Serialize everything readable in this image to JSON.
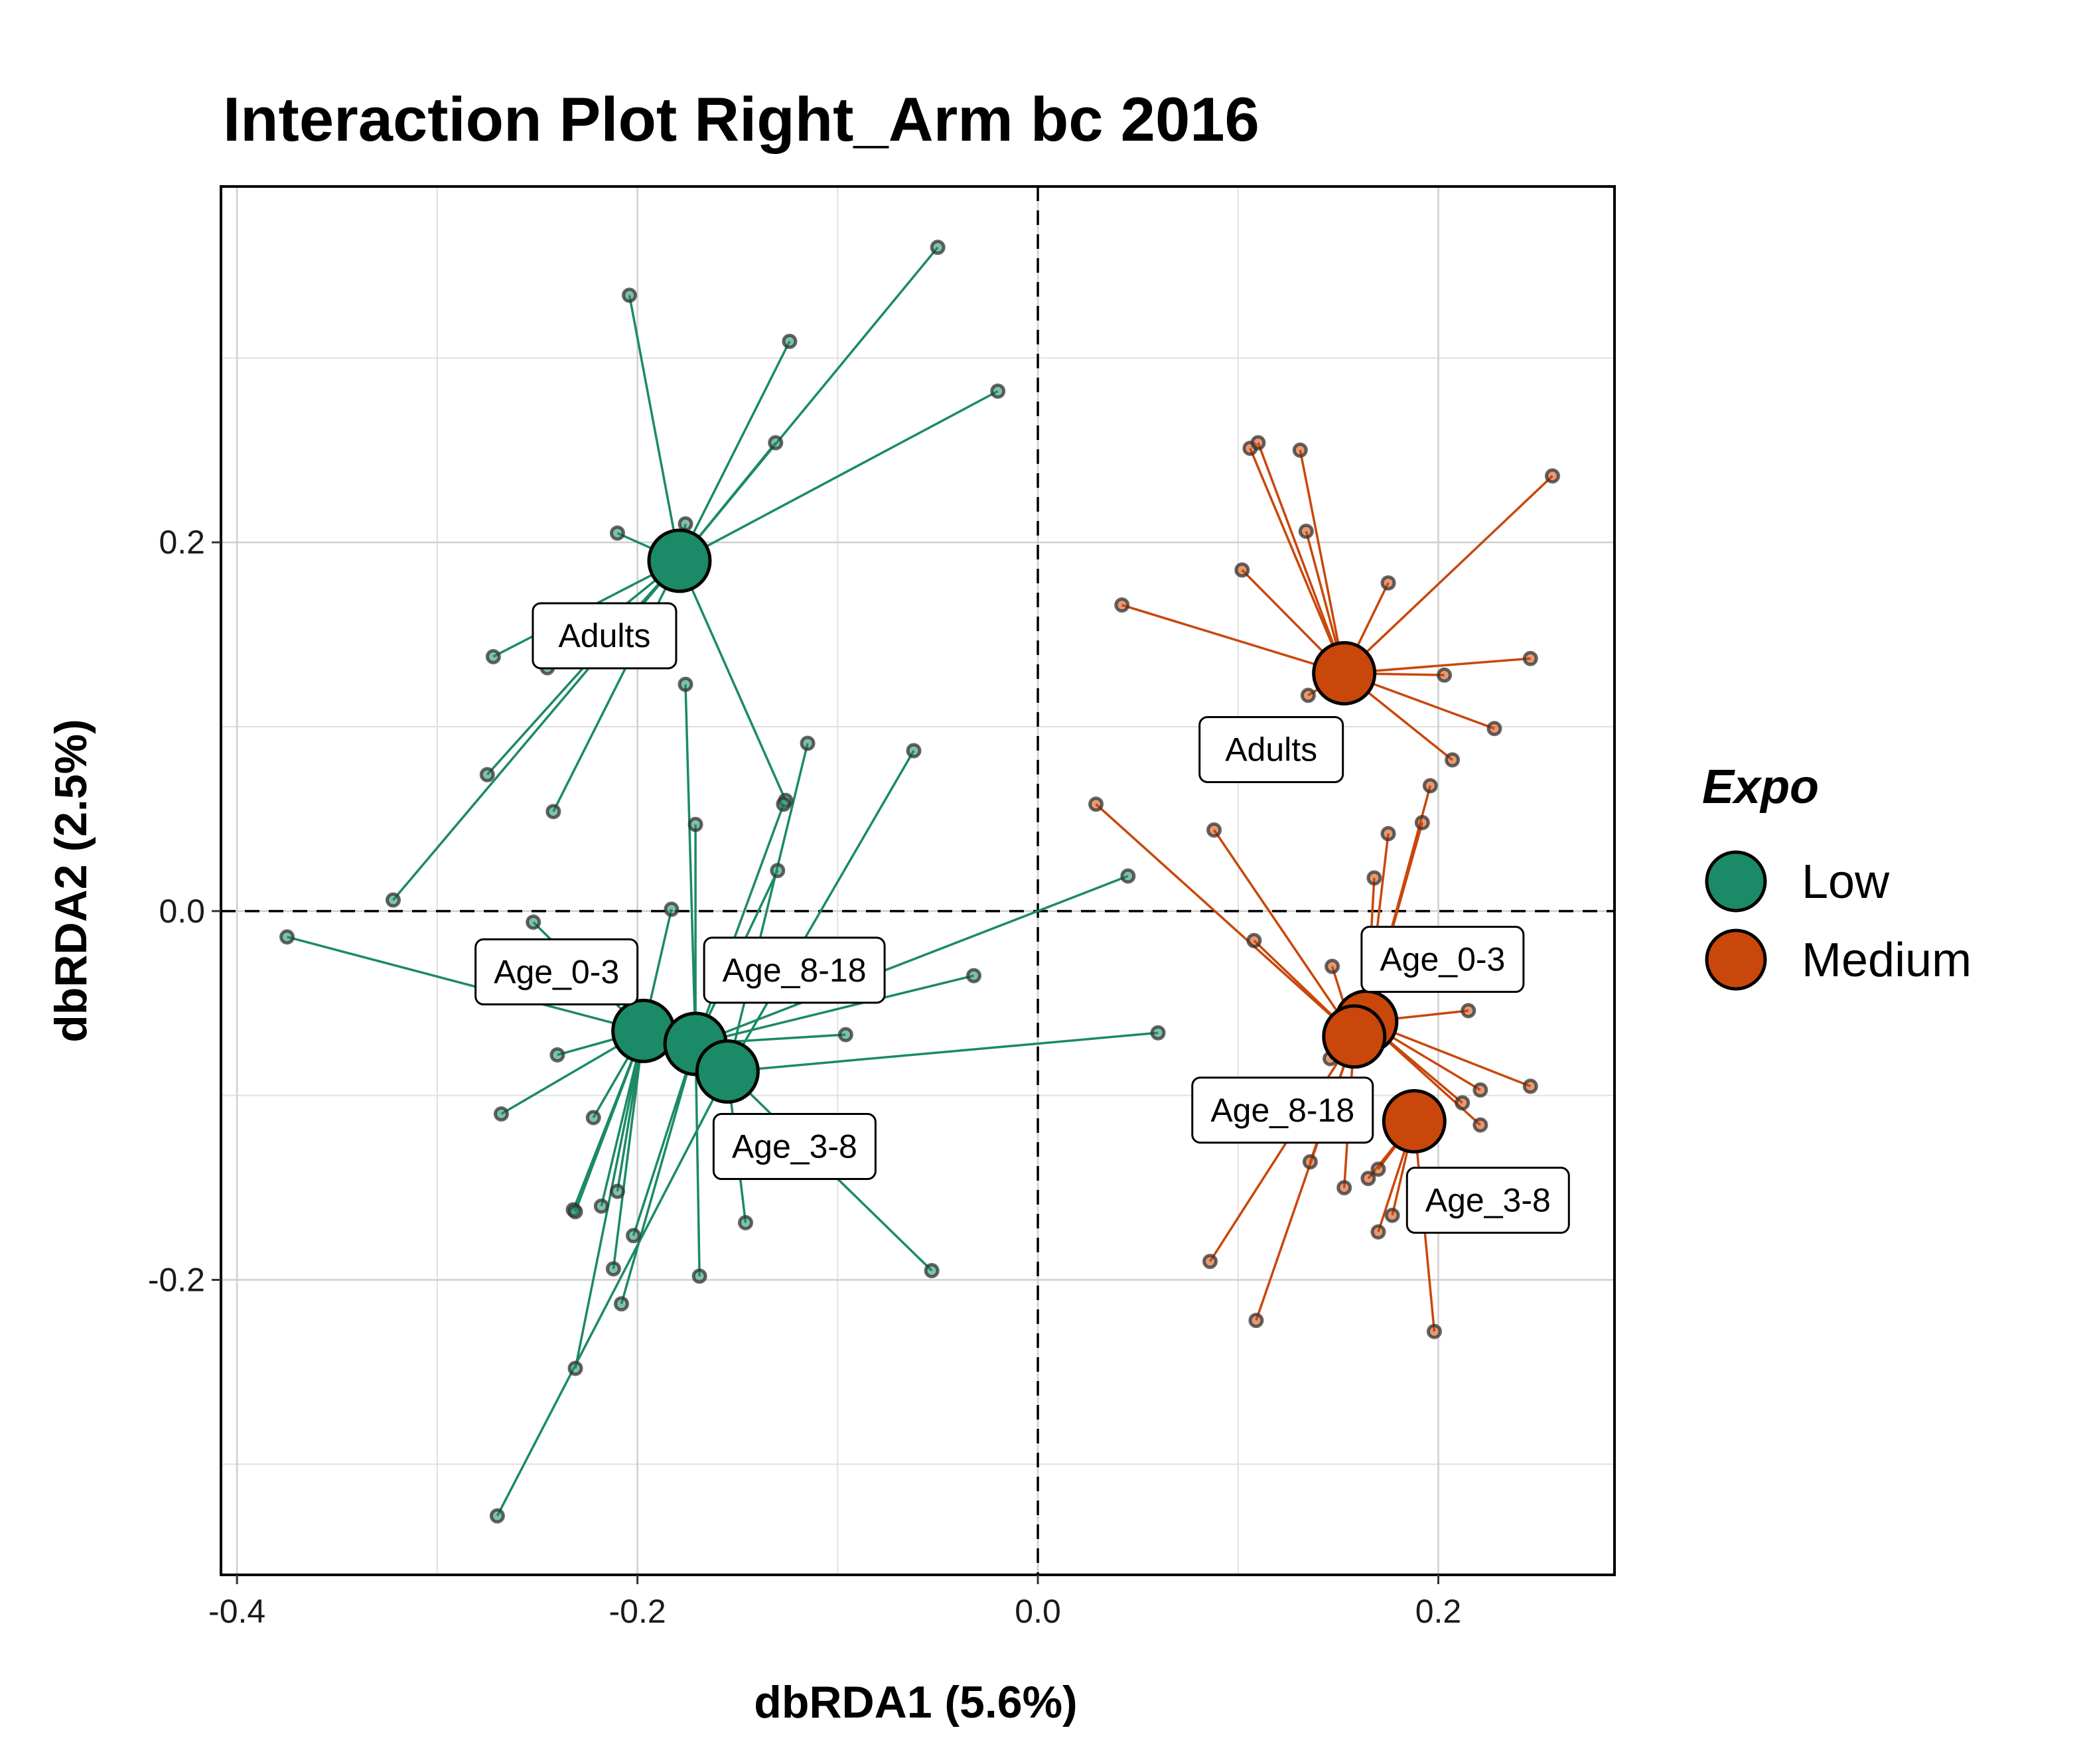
{
  "chart_data": {
    "type": "scatter",
    "title": "Interaction Plot Right_Arm bc 2016",
    "xlabel": "dbRDA1 (5.6%)",
    "ylabel": "dbRDA2 (2.5%)",
    "xlim": [
      -0.408,
      0.288
    ],
    "ylim": [
      -0.36,
      0.393
    ],
    "x_ticks": [
      "-0.4",
      "-0.2",
      "0.0",
      "0.2"
    ],
    "y_ticks": [
      "-0.2",
      "0.0",
      "0.2"
    ],
    "x_tick_values": [
      -0.4,
      -0.2,
      0.0,
      0.2
    ],
    "y_tick_values": [
      -0.2,
      0.0,
      0.2
    ],
    "grid": true,
    "reference_lines": {
      "x": 0.0,
      "y": 0.0,
      "style": "dashed"
    },
    "legend": {
      "title": "Expo",
      "position": "right",
      "entries": [
        "Low",
        "Medium"
      ]
    },
    "series": [
      {
        "name": "Low",
        "color": "#1b8a66",
        "centroids": [
          {
            "label": "Adults",
            "x": -0.179,
            "y": 0.19
          },
          {
            "label": "Age_0-3",
            "x": -0.197,
            "y": -0.065
          },
          {
            "label": "Age_8-18",
            "x": -0.171,
            "y": -0.072
          },
          {
            "label": "Age_3-8",
            "x": -0.155,
            "y": -0.087
          }
        ],
        "points": [
          {
            "group": "Adults",
            "x": -0.05,
            "y": 0.36
          },
          {
            "group": "Adults",
            "x": -0.204,
            "y": 0.334
          },
          {
            "group": "Adults",
            "x": -0.124,
            "y": 0.309
          },
          {
            "group": "Adults",
            "x": -0.02,
            "y": 0.282
          },
          {
            "group": "Adults",
            "x": -0.131,
            "y": 0.254
          },
          {
            "group": "Adults",
            "x": -0.176,
            "y": 0.21
          },
          {
            "group": "Adults",
            "x": -0.21,
            "y": 0.205
          },
          {
            "group": "Adults",
            "x": -0.272,
            "y": 0.138
          },
          {
            "group": "Adults",
            "x": -0.245,
            "y": 0.132
          },
          {
            "group": "Adults",
            "x": -0.275,
            "y": 0.074
          },
          {
            "group": "Adults",
            "x": -0.242,
            "y": 0.054
          },
          {
            "group": "Adults",
            "x": -0.322,
            "y": 0.006
          },
          {
            "group": "Adults",
            "x": -0.126,
            "y": 0.06
          },
          {
            "group": "Age_0-3",
            "x": -0.375,
            "y": -0.014
          },
          {
            "group": "Age_0-3",
            "x": -0.252,
            "y": -0.006
          },
          {
            "group": "Age_0-3",
            "x": -0.24,
            "y": -0.078
          },
          {
            "group": "Age_0-3",
            "x": -0.268,
            "y": -0.11
          },
          {
            "group": "Age_0-3",
            "x": -0.222,
            "y": -0.112
          },
          {
            "group": "Age_0-3",
            "x": -0.232,
            "y": -0.162
          },
          {
            "group": "Age_0-3",
            "x": -0.231,
            "y": -0.163
          },
          {
            "group": "Age_0-3",
            "x": -0.21,
            "y": -0.152
          },
          {
            "group": "Age_0-3",
            "x": -0.218,
            "y": -0.16
          },
          {
            "group": "Age_0-3",
            "x": -0.212,
            "y": -0.194
          },
          {
            "group": "Age_0-3",
            "x": -0.231,
            "y": -0.248
          },
          {
            "group": "Age_0-3",
            "x": -0.183,
            "y": 0.001
          },
          {
            "group": "Age_8-18",
            "x": -0.176,
            "y": 0.123
          },
          {
            "group": "Age_8-18",
            "x": -0.171,
            "y": 0.047
          },
          {
            "group": "Age_8-18",
            "x": -0.127,
            "y": 0.058
          },
          {
            "group": "Age_8-18",
            "x": -0.13,
            "y": 0.022
          },
          {
            "group": "Age_8-18",
            "x": 0.045,
            "y": 0.019
          },
          {
            "group": "Age_8-18",
            "x": -0.032,
            "y": -0.035
          },
          {
            "group": "Age_8-18",
            "x": -0.096,
            "y": -0.067
          },
          {
            "group": "Age_8-18",
            "x": -0.202,
            "y": -0.176
          },
          {
            "group": "Age_8-18",
            "x": -0.208,
            "y": -0.213
          },
          {
            "group": "Age_8-18",
            "x": -0.169,
            "y": -0.198
          },
          {
            "group": "Age_3-8",
            "x": -0.115,
            "y": 0.091
          },
          {
            "group": "Age_3-8",
            "x": -0.062,
            "y": 0.087
          },
          {
            "group": "Age_3-8",
            "x": 0.06,
            "y": -0.066
          },
          {
            "group": "Age_3-8",
            "x": -0.146,
            "y": -0.169
          },
          {
            "group": "Age_3-8",
            "x": -0.053,
            "y": -0.195
          },
          {
            "group": "Age_3-8",
            "x": -0.27,
            "y": -0.328
          }
        ]
      },
      {
        "name": "Medium",
        "color": "#c9470a",
        "centroids": [
          {
            "label": "Adults",
            "x": 0.153,
            "y": 0.129
          },
          {
            "label": "Age_0-3",
            "x": 0.164,
            "y": -0.06
          },
          {
            "label": "Age_8-18",
            "x": 0.158,
            "y": -0.068
          },
          {
            "label": "Age_3-8",
            "x": 0.188,
            "y": -0.114
          }
        ],
        "points": [
          {
            "group": "Adults",
            "x": 0.106,
            "y": 0.251
          },
          {
            "group": "Adults",
            "x": 0.11,
            "y": 0.254
          },
          {
            "group": "Adults",
            "x": 0.131,
            "y": 0.25
          },
          {
            "group": "Adults",
            "x": 0.257,
            "y": 0.236
          },
          {
            "group": "Adults",
            "x": 0.134,
            "y": 0.206
          },
          {
            "group": "Adults",
            "x": 0.102,
            "y": 0.185
          },
          {
            "group": "Adults",
            "x": 0.175,
            "y": 0.178
          },
          {
            "group": "Adults",
            "x": 0.042,
            "y": 0.166
          },
          {
            "group": "Adults",
            "x": 0.246,
            "y": 0.137
          },
          {
            "group": "Adults",
            "x": 0.203,
            "y": 0.128
          },
          {
            "group": "Adults",
            "x": 0.135,
            "y": 0.117
          },
          {
            "group": "Adults",
            "x": 0.228,
            "y": 0.099
          },
          {
            "group": "Adults",
            "x": 0.207,
            "y": 0.082
          },
          {
            "group": "Age_0-3",
            "x": 0.196,
            "y": 0.068
          },
          {
            "group": "Age_0-3",
            "x": 0.192,
            "y": 0.048
          },
          {
            "group": "Age_0-3",
            "x": 0.175,
            "y": 0.042
          },
          {
            "group": "Age_0-3",
            "x": 0.168,
            "y": 0.018
          },
          {
            "group": "Age_0-3",
            "x": 0.215,
            "y": -0.054
          },
          {
            "group": "Age_0-3",
            "x": 0.246,
            "y": -0.095
          },
          {
            "group": "Age_0-3",
            "x": 0.221,
            "y": -0.097
          },
          {
            "group": "Age_0-3",
            "x": 0.212,
            "y": -0.104
          },
          {
            "group": "Age_0-3",
            "x": 0.221,
            "y": -0.116
          },
          {
            "group": "Age_8-18",
            "x": 0.029,
            "y": 0.058
          },
          {
            "group": "Age_8-18",
            "x": 0.088,
            "y": 0.044
          },
          {
            "group": "Age_8-18",
            "x": 0.108,
            "y": -0.016
          },
          {
            "group": "Age_8-18",
            "x": 0.147,
            "y": -0.03
          },
          {
            "group": "Age_8-18",
            "x": 0.146,
            "y": -0.08
          },
          {
            "group": "Age_8-18",
            "x": 0.136,
            "y": -0.136
          },
          {
            "group": "Age_8-18",
            "x": 0.153,
            "y": -0.15
          },
          {
            "group": "Age_8-18",
            "x": 0.086,
            "y": -0.19
          },
          {
            "group": "Age_8-18",
            "x": 0.109,
            "y": -0.222
          },
          {
            "group": "Age_3-8",
            "x": 0.165,
            "y": -0.145
          },
          {
            "group": "Age_3-8",
            "x": 0.17,
            "y": -0.14
          },
          {
            "group": "Age_3-8",
            "x": 0.17,
            "y": -0.174
          },
          {
            "group": "Age_3-8",
            "x": 0.177,
            "y": -0.165
          },
          {
            "group": "Age_3-8",
            "x": 0.198,
            "y": -0.228
          }
        ]
      }
    ]
  }
}
